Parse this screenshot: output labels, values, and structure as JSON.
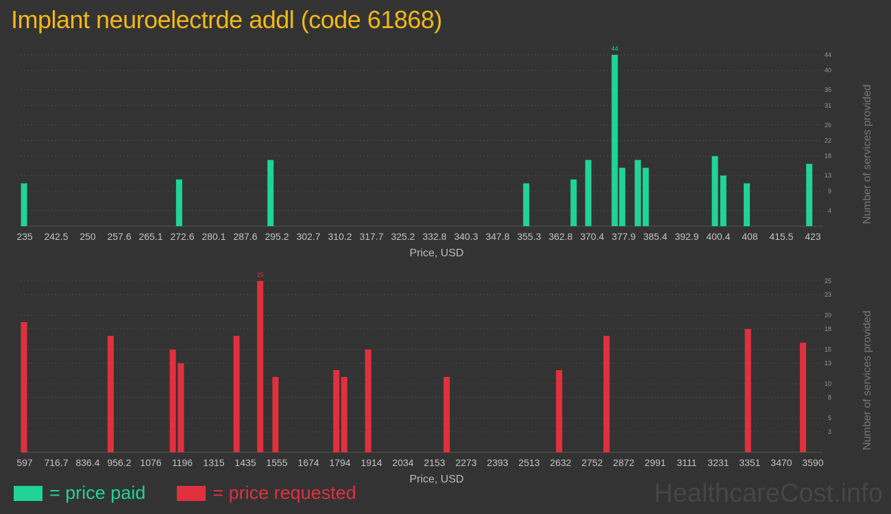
{
  "title": "Implant neuroelectrde addl (code 61868)",
  "colors": {
    "paid": "#1fd496",
    "requested": "#e0303e",
    "title": "#f2b818"
  },
  "legend": {
    "paid": "= price paid",
    "requested": "= price requested"
  },
  "watermark": "HealthcareCost.info",
  "chart_data": [
    {
      "type": "bar",
      "series_name": "price paid",
      "xlabel": "Price, USD",
      "ylabel": "Number of services provided",
      "xlim": [
        235,
        423
      ],
      "ylim": [
        0,
        44
      ],
      "x_ticks": [
        "235",
        "242.5",
        "250",
        "257.6",
        "265.1",
        "272.6",
        "280.1",
        "287.6",
        "295.2",
        "302.7",
        "310.2",
        "317.7",
        "325.2",
        "332.8",
        "340.3",
        "347.8",
        "355.3",
        "362.8",
        "370.4",
        "377.9",
        "385.4",
        "392.9",
        "400.4",
        "408",
        "415.5",
        "423"
      ],
      "y_ticks": [
        4,
        9,
        13,
        18,
        22,
        26,
        31,
        35,
        40,
        44
      ],
      "bars": [
        {
          "x": 235.0,
          "value": 11
        },
        {
          "x": 272.0,
          "value": 12
        },
        {
          "x": 293.8,
          "value": 17
        },
        {
          "x": 354.8,
          "value": 11
        },
        {
          "x": 366.1,
          "value": 12
        },
        {
          "x": 369.6,
          "value": 17
        },
        {
          "x": 375.9,
          "value": 44
        },
        {
          "x": 377.7,
          "value": 15
        },
        {
          "x": 381.4,
          "value": 17
        },
        {
          "x": 383.3,
          "value": 15
        },
        {
          "x": 399.8,
          "value": 18
        },
        {
          "x": 401.8,
          "value": 13
        },
        {
          "x": 407.4,
          "value": 11
        },
        {
          "x": 422.3,
          "value": 16
        }
      ],
      "max_label": "44"
    },
    {
      "type": "bar",
      "series_name": "price requested",
      "xlabel": "Price, USD",
      "ylabel": "Number of services provided",
      "xlim": [
        597,
        3590
      ],
      "ylim": [
        0,
        25
      ],
      "x_ticks": [
        "597",
        "716.7",
        "836.4",
        "956.2",
        "1076",
        "1196",
        "1315",
        "1435",
        "1555",
        "1674",
        "1794",
        "1914",
        "2034",
        "2153",
        "2273",
        "2393",
        "2513",
        "2632",
        "2752",
        "2872",
        "2991",
        "3111",
        "3231",
        "3351",
        "3470",
        "3590"
      ],
      "y_ticks": [
        3,
        5,
        8,
        10,
        13,
        15,
        18,
        20,
        23,
        25
      ],
      "bars": [
        {
          "x": 597,
          "value": 19
        },
        {
          "x": 926,
          "value": 17
        },
        {
          "x": 1162,
          "value": 15
        },
        {
          "x": 1193,
          "value": 13
        },
        {
          "x": 1404,
          "value": 17
        },
        {
          "x": 1494,
          "value": 25
        },
        {
          "x": 1552,
          "value": 11
        },
        {
          "x": 1783,
          "value": 12
        },
        {
          "x": 1813,
          "value": 11
        },
        {
          "x": 1904,
          "value": 15
        },
        {
          "x": 2202,
          "value": 11
        },
        {
          "x": 2629,
          "value": 12
        },
        {
          "x": 2809,
          "value": 17
        },
        {
          "x": 3346,
          "value": 18
        },
        {
          "x": 3555,
          "value": 16
        }
      ],
      "max_label": "25"
    }
  ]
}
